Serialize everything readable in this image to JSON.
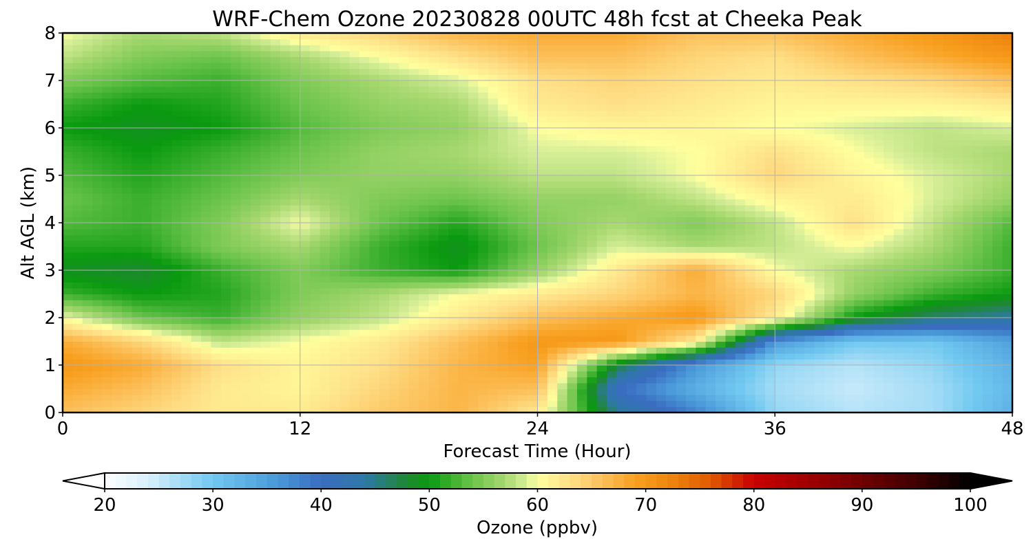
{
  "chart_data": {
    "type": "heatmap",
    "title": "WRF-Chem Ozone  20230828 00UTC 48h fcst at Cheeka Peak",
    "xlabel": "Forecast Time (Hour)",
    "ylabel": "Alt AGL (km)",
    "xlim": [
      0,
      48
    ],
    "ylim": [
      0,
      8
    ],
    "x_ticks": [
      0,
      12,
      24,
      36,
      48
    ],
    "y_ticks": [
      0,
      1,
      2,
      3,
      4,
      5,
      6,
      7,
      8
    ],
    "grid": true,
    "x": [
      0,
      4,
      8,
      12,
      16,
      20,
      24,
      28,
      32,
      36,
      40,
      44,
      48
    ],
    "y": [
      0,
      0.5,
      1,
      1.5,
      2,
      2.5,
      3,
      3.5,
      4,
      4.5,
      5,
      5.5,
      6,
      6.5,
      7,
      7.5,
      8
    ],
    "z": [
      [
        66,
        64,
        62,
        62,
        65,
        67,
        62,
        45,
        38,
        28,
        26,
        27,
        33
      ],
      [
        68,
        66,
        62,
        61,
        64,
        67,
        66,
        40,
        33,
        27,
        25,
        27,
        32
      ],
      [
        70,
        68,
        63,
        61,
        63,
        67,
        69,
        48,
        36,
        28,
        26,
        28,
        33
      ],
      [
        68,
        64,
        58,
        60,
        62,
        66,
        70,
        70,
        62,
        36,
        30,
        30,
        35
      ],
      [
        60,
        54,
        52,
        56,
        58,
        62,
        66,
        68,
        70,
        62,
        50,
        46,
        44
      ],
      [
        52,
        50,
        51,
        55,
        57,
        60,
        62,
        64,
        67,
        64,
        56,
        52,
        50
      ],
      [
        49,
        48,
        52,
        55,
        52,
        50,
        56,
        62,
        68,
        60,
        57,
        55,
        52
      ],
      [
        51,
        51,
        55,
        57,
        52,
        49,
        54,
        59,
        57,
        58,
        60,
        57,
        52
      ],
      [
        53,
        52,
        55,
        60,
        54,
        51,
        55,
        57,
        55,
        58,
        63,
        58,
        53
      ],
      [
        54,
        52,
        54,
        57,
        55,
        54,
        56,
        56,
        58,
        61,
        62,
        59,
        56
      ],
      [
        53,
        51,
        53,
        55,
        56,
        56,
        58,
        58,
        60,
        64,
        61,
        59,
        57
      ],
      [
        52,
        50,
        52,
        54,
        56,
        57,
        59,
        59,
        60,
        63,
        60,
        58,
        57
      ],
      [
        50,
        49,
        50,
        53,
        55,
        56,
        60,
        61,
        61,
        60,
        59,
        58,
        59
      ],
      [
        52,
        50,
        51,
        54,
        56,
        57,
        62,
        63,
        62,
        61,
        61,
        61,
        62
      ],
      [
        55,
        53,
        52,
        55,
        57,
        59,
        63,
        64,
        63,
        62,
        63,
        64,
        66
      ],
      [
        58,
        55,
        54,
        57,
        60,
        63,
        66,
        66,
        64,
        63,
        66,
        68,
        70
      ],
      [
        60,
        57,
        58,
        62,
        64,
        67,
        68,
        68,
        66,
        66,
        68,
        70,
        73
      ]
    ],
    "colorbar": {
      "label": "Ozone  (ppbv)",
      "min": 20,
      "max": 100,
      "ticks": [
        20,
        30,
        40,
        50,
        60,
        70,
        80,
        90,
        100
      ],
      "extend": "both",
      "stops": [
        [
          20,
          "#ffffff"
        ],
        [
          24,
          "#d8f0fb"
        ],
        [
          30,
          "#70c8f0"
        ],
        [
          36,
          "#4a98d8"
        ],
        [
          40,
          "#3a6cc0"
        ],
        [
          44,
          "#2e78a8"
        ],
        [
          48,
          "#1e8830"
        ],
        [
          50,
          "#0a9a10"
        ],
        [
          54,
          "#6cc44c"
        ],
        [
          57,
          "#a8d870"
        ],
        [
          59,
          "#d6ee98"
        ],
        [
          60,
          "#ffff9e"
        ],
        [
          63,
          "#fee088"
        ],
        [
          66,
          "#fcc05a"
        ],
        [
          69,
          "#f8a020"
        ],
        [
          72,
          "#f08810"
        ],
        [
          76,
          "#e05a00"
        ],
        [
          80,
          "#c80000"
        ],
        [
          85,
          "#a00000"
        ],
        [
          90,
          "#700000"
        ],
        [
          95,
          "#400000"
        ],
        [
          100,
          "#000000"
        ]
      ]
    }
  }
}
